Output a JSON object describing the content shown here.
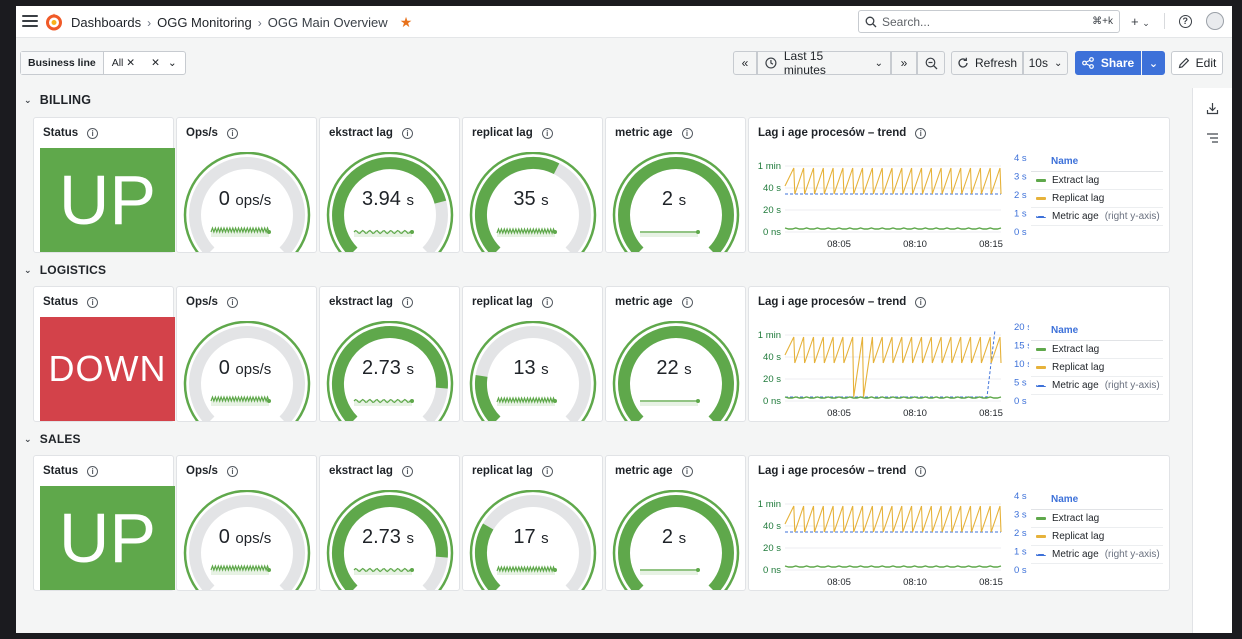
{
  "nav": {
    "breadcrumbs": [
      "Dashboards",
      "OGG Monitoring",
      "OGG Main Overview"
    ],
    "search_placeholder": "Search...",
    "search_shortcut": "⌘+k",
    "add_label": "+"
  },
  "toolbar": {
    "variable_label": "Business line",
    "variable_value": "All",
    "time_range": "Last 15 minutes",
    "refresh_label": "Refresh",
    "refresh_interval": "10s",
    "share_label": "Share",
    "edit_label": "Edit"
  },
  "colors": {
    "green": "#5fa84b",
    "red": "#d3424a",
    "yellow": "#e6b23a",
    "blue": "#3d71d9"
  },
  "rows": [
    {
      "title": "BILLING",
      "status": {
        "title": "Status",
        "value": "UP"
      },
      "ops": {
        "title": "Ops/s",
        "value": "0",
        "unit": "ops/s",
        "fraction": 0.0
      },
      "extract": {
        "title": "ekstract lag",
        "value": "3.94",
        "unit": "s",
        "fraction": 0.78
      },
      "replicat": {
        "title": "replicat lag",
        "value": "35",
        "unit": "s",
        "fraction": 0.6
      },
      "metric": {
        "title": "metric age",
        "value": "2",
        "unit": "s",
        "fraction": 1.0
      },
      "trend": {
        "title": "Lag i age procesów – trend",
        "left_ticks": [
          "1 min",
          "40 s",
          "20 s",
          "0 ns"
        ],
        "right_ticks": [
          "4 s",
          "3 s",
          "2 s",
          "1 s",
          "0 s"
        ],
        "x_ticks": [
          "08:05",
          "08:10",
          "08:15"
        ]
      }
    },
    {
      "title": "LOGISTICS",
      "status": {
        "title": "Status",
        "value": "DOWN"
      },
      "ops": {
        "title": "Ops/s",
        "value": "0",
        "unit": "ops/s",
        "fraction": 0.0
      },
      "extract": {
        "title": "ekstract lag",
        "value": "2.73",
        "unit": "s",
        "fraction": 0.85
      },
      "replicat": {
        "title": "replicat lag",
        "value": "13",
        "unit": "s",
        "fraction": 0.2
      },
      "metric": {
        "title": "metric age",
        "value": "22",
        "unit": "s",
        "fraction": 1.0
      },
      "trend": {
        "title": "Lag i age procesów – trend",
        "left_ticks": [
          "1 min",
          "40 s",
          "20 s",
          "0 ns"
        ],
        "right_ticks": [
          "20 s",
          "15 s",
          "10 s",
          "5 s",
          "0 s"
        ],
        "x_ticks": [
          "08:05",
          "08:10",
          "08:15"
        ]
      }
    },
    {
      "title": "SALES",
      "status": {
        "title": "Status",
        "value": "UP"
      },
      "ops": {
        "title": "Ops/s",
        "value": "0",
        "unit": "ops/s",
        "fraction": 0.0
      },
      "extract": {
        "title": "ekstract lag",
        "value": "2.73",
        "unit": "s",
        "fraction": 0.85
      },
      "replicat": {
        "title": "replicat lag",
        "value": "17",
        "unit": "s",
        "fraction": 0.28
      },
      "metric": {
        "title": "metric age",
        "value": "2",
        "unit": "s",
        "fraction": 1.0
      },
      "trend": {
        "title": "Lag i age procesów – trend",
        "left_ticks": [
          "1 min",
          "40 s",
          "20 s",
          "0 ns"
        ],
        "right_ticks": [
          "4 s",
          "3 s",
          "2 s",
          "1 s",
          "0 s"
        ],
        "x_ticks": [
          "08:05",
          "08:10",
          "08:15"
        ]
      }
    }
  ],
  "legend": {
    "header": "Name",
    "items": [
      {
        "label": "Extract lag",
        "suffix": ""
      },
      {
        "label": "Replicat lag",
        "suffix": ""
      },
      {
        "label": "Metric age",
        "suffix": "(right y-axis)"
      }
    ]
  }
}
